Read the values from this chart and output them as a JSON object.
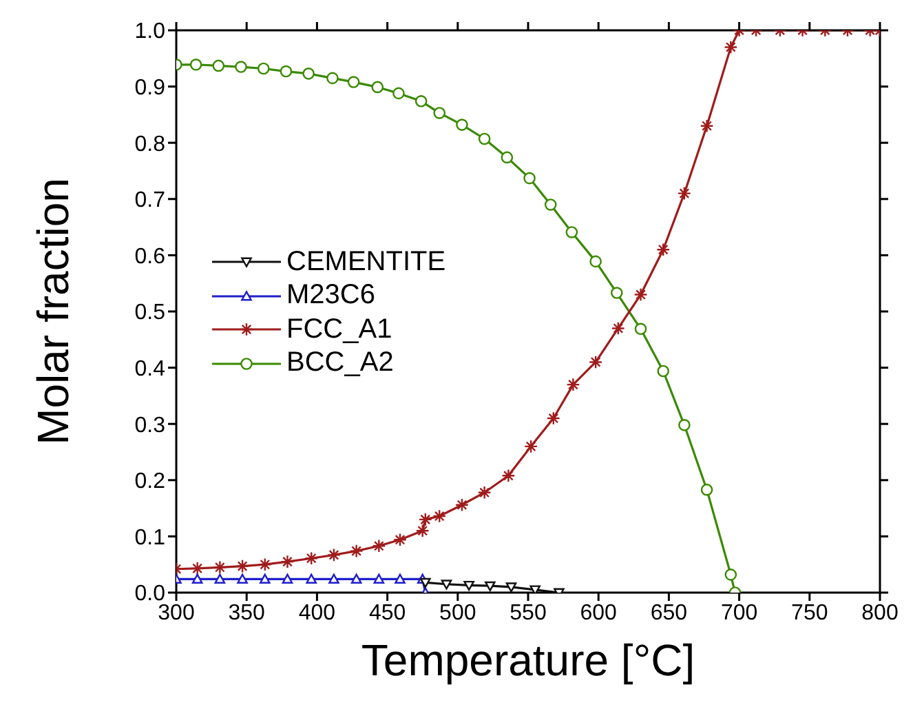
{
  "chart_data": {
    "type": "line",
    "xlabel": "Temperature [°C]",
    "ylabel": "Molar fraction",
    "xlim": [
      300,
      800
    ],
    "xticks": [
      300,
      350,
      400,
      450,
      500,
      550,
      600,
      650,
      700,
      750,
      800
    ],
    "ylim": [
      0,
      1
    ],
    "yticks": [
      {
        "value": 0,
        "label": "0.0"
      },
      0.1,
      0.2,
      0.3,
      0.4,
      0.5,
      0.6,
      0.7,
      0.8,
      0.9,
      {
        "value": 1,
        "label": "1.0"
      }
    ],
    "legend": "left",
    "grid": false,
    "series": [
      {
        "name": "CEMENTITE",
        "color": "#111111",
        "marker": "triangle-down",
        "x": [
          477,
          492,
          508,
          523,
          538,
          555,
          572
        ],
        "values": [
          0.018,
          0.015,
          0.013,
          0.012,
          0.01,
          0.005,
          0.0
        ]
      },
      {
        "name": "M23C6",
        "color": "#1f1fcc",
        "marker": "triangle",
        "x": [
          300,
          315,
          331,
          347,
          363,
          379,
          396,
          412,
          428,
          444,
          459,
          475,
          477
        ],
        "values": [
          0.024,
          0.024,
          0.024,
          0.024,
          0.024,
          0.024,
          0.024,
          0.024,
          0.024,
          0.024,
          0.024,
          0.024,
          0.0
        ]
      },
      {
        "name": "FCC_A1",
        "color": "#a01c1c",
        "marker": "cross",
        "x": [
          300,
          315,
          331,
          347,
          363,
          379,
          396,
          412,
          428,
          444,
          459,
          475,
          477,
          487,
          503,
          519,
          536,
          552,
          568,
          582,
          598,
          614,
          630,
          646,
          661,
          677,
          694,
          700,
          712,
          729,
          745,
          761,
          777,
          793,
          800
        ],
        "values": [
          0.042,
          0.043,
          0.045,
          0.047,
          0.05,
          0.055,
          0.061,
          0.067,
          0.074,
          0.083,
          0.094,
          0.11,
          0.13,
          0.136,
          0.156,
          0.178,
          0.208,
          0.26,
          0.31,
          0.37,
          0.41,
          0.47,
          0.53,
          0.61,
          0.71,
          0.83,
          0.97,
          1.0,
          1.0,
          1.0,
          1.0,
          1.0,
          1.0,
          1.0,
          1.0
        ]
      },
      {
        "name": "BCC_A2",
        "color": "#3a8a00",
        "marker": "circle",
        "x": [
          300,
          314,
          330,
          346,
          362,
          378,
          394,
          411,
          426,
          443,
          458,
          474,
          487,
          503,
          519,
          535,
          551,
          566,
          581,
          598,
          613,
          630,
          646,
          661,
          677,
          694,
          697
        ],
        "values": [
          0.939,
          0.939,
          0.937,
          0.935,
          0.932,
          0.927,
          0.923,
          0.915,
          0.908,
          0.899,
          0.888,
          0.874,
          0.853,
          0.832,
          0.807,
          0.774,
          0.737,
          0.69,
          0.641,
          0.589,
          0.533,
          0.469,
          0.394,
          0.298,
          0.183,
          0.032,
          0.0
        ]
      }
    ]
  }
}
